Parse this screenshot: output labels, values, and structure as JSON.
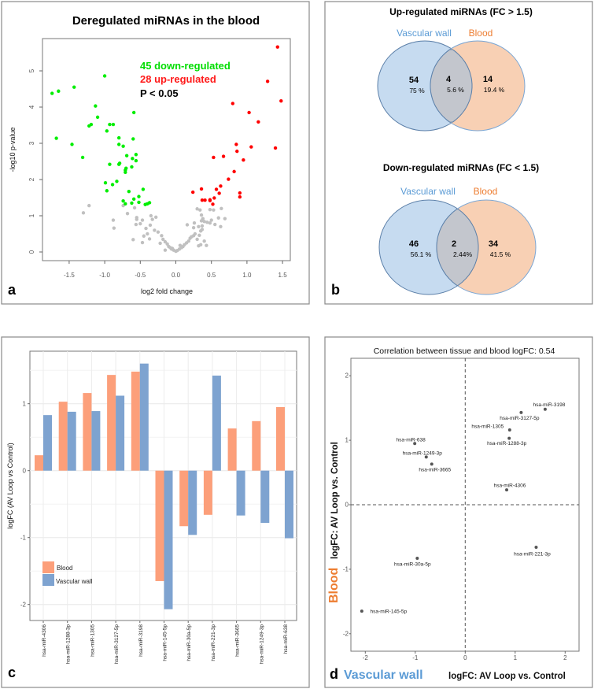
{
  "panel_labels": {
    "a": "a",
    "b": "b",
    "c": "c",
    "d": "d"
  },
  "chart_data": [
    {
      "type": "scatter",
      "panel": "a",
      "title": "Deregulated miRNAs in the blood",
      "xlabel": "log2 fold change",
      "ylabel": "-log10 p-value",
      "xlim": [
        -1.8,
        1.6
      ],
      "ylim": [
        -0.2,
        5.8
      ],
      "xticks": [
        "-1.5",
        "-1.0",
        "-0.5",
        "0.0",
        "0.5",
        "1.0",
        "1.5"
      ],
      "yticks": [
        "0",
        "1",
        "2",
        "3",
        "4",
        "5"
      ],
      "annotations": [
        {
          "text": "45 down-regulated",
          "color": "#00dd00"
        },
        {
          "text": "28 up-regulated",
          "color": "#ff1a1a"
        },
        {
          "text": "P < 0.05",
          "color": "#000000"
        }
      ],
      "series": [
        {
          "color": "#00ee00",
          "points": [
            [
              -1.74,
              4.38
            ],
            [
              -1.65,
              4.44
            ],
            [
              -1.43,
              4.55
            ],
            [
              -1.0,
              4.86
            ],
            [
              -1.13,
              4.03
            ],
            [
              -1.1,
              3.72
            ],
            [
              -1.22,
              3.48
            ],
            [
              -1.19,
              3.52
            ],
            [
              -0.93,
              3.52
            ],
            [
              -0.88,
              3.52
            ],
            [
              -0.97,
              3.34
            ],
            [
              -1.68,
              3.14
            ],
            [
              -1.46,
              2.97
            ],
            [
              -1.31,
              2.61
            ],
            [
              -0.8,
              3.15
            ],
            [
              -0.8,
              2.97
            ],
            [
              -0.74,
              2.92
            ],
            [
              -0.59,
              3.85
            ],
            [
              -0.6,
              3.12
            ],
            [
              -0.69,
              2.66
            ],
            [
              -0.56,
              2.69
            ],
            [
              -0.61,
              2.58
            ],
            [
              -0.56,
              2.52
            ],
            [
              -0.93,
              2.42
            ],
            [
              -0.8,
              2.42
            ],
            [
              -0.79,
              2.45
            ],
            [
              -0.7,
              2.31
            ],
            [
              -0.71,
              2.26
            ],
            [
              -0.71,
              2.2
            ],
            [
              -0.62,
              2.35
            ],
            [
              -0.99,
              1.91
            ],
            [
              -0.83,
              1.95
            ],
            [
              -0.89,
              1.86
            ],
            [
              -0.97,
              1.69
            ],
            [
              -0.66,
              1.67
            ],
            [
              -0.46,
              1.73
            ],
            [
              -0.74,
              1.41
            ],
            [
              -0.59,
              1.46
            ],
            [
              -0.52,
              1.53
            ],
            [
              -0.71,
              1.33
            ],
            [
              -0.62,
              1.35
            ],
            [
              -0.52,
              1.37
            ],
            [
              -0.43,
              1.31
            ],
            [
              -0.4,
              1.33
            ],
            [
              -0.37,
              1.36
            ]
          ]
        },
        {
          "color": "#ff0000",
          "points": [
            [
              1.43,
              5.66
            ],
            [
              1.29,
              4.71
            ],
            [
              1.48,
              4.17
            ],
            [
              0.8,
              4.1
            ],
            [
              1.03,
              3.85
            ],
            [
              1.16,
              3.59
            ],
            [
              1.06,
              2.9
            ],
            [
              1.4,
              2.87
            ],
            [
              0.85,
              2.97
            ],
            [
              0.86,
              2.78
            ],
            [
              0.95,
              2.54
            ],
            [
              0.67,
              2.64
            ],
            [
              0.53,
              2.61
            ],
            [
              0.82,
              2.22
            ],
            [
              0.74,
              2.01
            ],
            [
              0.63,
              1.82
            ],
            [
              0.57,
              1.73
            ],
            [
              0.61,
              1.62
            ],
            [
              0.9,
              1.63
            ],
            [
              0.9,
              1.52
            ],
            [
              0.36,
              1.74
            ],
            [
              0.24,
              1.65
            ],
            [
              0.37,
              1.43
            ],
            [
              0.41,
              1.43
            ],
            [
              0.48,
              1.42
            ],
            [
              0.48,
              1.44
            ],
            [
              0.54,
              1.49
            ],
            [
              0.52,
              1.32
            ]
          ]
        },
        {
          "color": "#c0c0c0",
          "points": [
            [
              -1.3,
              1.08
            ],
            [
              -1.22,
              1.28
            ],
            [
              -0.88,
              0.88
            ],
            [
              -0.87,
              0.66
            ],
            [
              -0.74,
              1.28
            ],
            [
              -0.58,
              1.22
            ],
            [
              -0.68,
              1.06
            ],
            [
              -0.55,
              0.95
            ],
            [
              -0.55,
              0.9
            ],
            [
              -0.56,
              0.76
            ],
            [
              -0.5,
              0.78
            ],
            [
              -0.47,
              0.88
            ],
            [
              -0.42,
              0.65
            ],
            [
              -0.35,
              1.0
            ],
            [
              -0.33,
              0.9
            ],
            [
              -0.36,
              0.74
            ],
            [
              -0.28,
              0.96
            ],
            [
              -0.3,
              0.6
            ],
            [
              -0.4,
              0.5
            ],
            [
              -0.45,
              0.44
            ],
            [
              -0.37,
              0.36
            ],
            [
              -0.6,
              0.34
            ],
            [
              -0.47,
              0.26
            ],
            [
              -0.25,
              0.55
            ],
            [
              -0.2,
              0.45
            ],
            [
              -0.18,
              0.35
            ],
            [
              -0.15,
              0.28
            ],
            [
              -0.22,
              0.24
            ],
            [
              -0.12,
              0.22
            ],
            [
              -0.1,
              0.15
            ],
            [
              -0.08,
              0.12
            ],
            [
              -0.06,
              0.08
            ],
            [
              -0.03,
              0.05
            ],
            [
              0.0,
              0.02
            ],
            [
              0.02,
              0.04
            ],
            [
              0.05,
              0.08
            ],
            [
              0.08,
              0.12
            ],
            [
              0.1,
              0.15
            ],
            [
              0.12,
              0.2
            ],
            [
              0.15,
              0.25
            ],
            [
              0.18,
              0.3
            ],
            [
              0.2,
              0.38
            ],
            [
              0.22,
              0.42
            ],
            [
              0.25,
              0.45
            ],
            [
              0.27,
              0.5
            ],
            [
              0.3,
              0.35
            ],
            [
              0.33,
              0.46
            ],
            [
              0.35,
              0.58
            ],
            [
              0.32,
              0.7
            ],
            [
              0.25,
              0.67
            ],
            [
              0.16,
              0.75
            ],
            [
              0.26,
              0.8
            ],
            [
              0.37,
              0.72
            ],
            [
              0.37,
              0.62
            ],
            [
              0.36,
              0.86
            ],
            [
              0.38,
              0.92
            ],
            [
              0.36,
              1.02
            ],
            [
              0.3,
              1.19
            ],
            [
              0.34,
              1.16
            ],
            [
              0.4,
              0.84
            ],
            [
              0.44,
              0.82
            ],
            [
              0.5,
              0.88
            ],
            [
              0.55,
              0.76
            ],
            [
              0.48,
              0.8
            ],
            [
              0.53,
              1.16
            ],
            [
              0.48,
              1.17
            ],
            [
              0.6,
              0.94
            ],
            [
              0.64,
              1.2
            ],
            [
              0.63,
              0.7
            ],
            [
              0.69,
              0.92
            ],
            [
              0.4,
              0.3
            ],
            [
              0.43,
              0.18
            ],
            [
              0.35,
              0.2
            ],
            [
              0.32,
              0.17
            ],
            [
              -0.15,
              0.05
            ],
            [
              -0.05,
              0.1
            ],
            [
              0.06,
              0.18
            ]
          ]
        }
      ]
    },
    {
      "type": "venn",
      "panel": "b",
      "diagrams": [
        {
          "title": "Up-regulated miRNAs (FC > 1.5)",
          "sets": [
            "Vascular wall",
            "Blood"
          ],
          "regions": [
            {
              "count": "54",
              "pct": "75 %"
            },
            {
              "count": "4",
              "pct": "5.6 %"
            },
            {
              "count": "14",
              "pct": "19.4 %"
            }
          ]
        },
        {
          "title": "Down-regulated miRNAs (FC < 1.5)",
          "sets": [
            "Vascular wall",
            "Blood"
          ],
          "regions": [
            {
              "count": "46",
              "pct": "56.1 %"
            },
            {
              "count": "2",
              "pct": "2.44%"
            },
            {
              "count": "34",
              "pct": "41.5 %"
            }
          ]
        }
      ],
      "colors": {
        "vascular_wall": "#5b9bd5",
        "blood": "#ed7d31"
      }
    },
    {
      "type": "bar",
      "panel": "c",
      "ylabel": "logFC (AV Loop vs Control)",
      "ylim": [
        -2.25,
        1.75
      ],
      "yticks": [
        "1",
        "0",
        "-1",
        "-2"
      ],
      "categories": [
        "hsa-miR-4306",
        "hsa-miR-1288-3p",
        "hsa-miR-1305",
        "hsa-miR-3127-5p",
        "hsa-miR-3198",
        "hsa-miR-145-5p",
        "hsa-miR-30a-5p",
        "hsa-miR-221-3p",
        "hsa-miR-3665",
        "hsa-miR-1249-3p",
        "hsa-miR-638"
      ],
      "series": [
        {
          "name": "Blood",
          "color": "#fc9f7a",
          "values": [
            0.23,
            1.03,
            1.16,
            1.43,
            1.48,
            -1.65,
            -0.83,
            -0.66,
            0.63,
            0.74,
            0.95
          ]
        },
        {
          "name": "Vascular wall",
          "color": "#7ea3d0",
          "values": [
            0.83,
            0.88,
            0.89,
            1.12,
            1.6,
            -2.07,
            -0.96,
            1.42,
            -0.67,
            -0.78,
            -1.01
          ]
        }
      ],
      "legend": "bottom-left"
    },
    {
      "type": "scatter",
      "panel": "d",
      "title": "Correlation between tissue and blood logFC: 0.54",
      "xlabel_prefix": "Vascular wall",
      "ylabel_prefix": "Blood",
      "axis_label": "logFC: AV Loop vs. Control",
      "xlim": [
        -2.3,
        2.3
      ],
      "ylim": [
        -2.27,
        2.27
      ],
      "xticks": [
        "-2",
        "-1",
        "0",
        "1",
        "2"
      ],
      "yticks": [
        "2",
        "1",
        "0",
        "-1",
        "-2"
      ],
      "points": [
        {
          "label": "hsa-miR-3198",
          "x": 1.6,
          "y": 1.48
        },
        {
          "label": "hsa-miR-3127-5p",
          "x": 1.12,
          "y": 1.43
        },
        {
          "label": "hsa-miR-1305",
          "x": 0.89,
          "y": 1.16
        },
        {
          "label": "hsa-miR-1288-3p",
          "x": 0.88,
          "y": 1.03
        },
        {
          "label": "hsa-miR-638",
          "x": -1.01,
          "y": 0.95
        },
        {
          "label": "hsa-miR-1249-3p",
          "x": -0.78,
          "y": 0.74
        },
        {
          "label": "hsa-miR-3665",
          "x": -0.67,
          "y": 0.63
        },
        {
          "label": "hsa-miR-4306",
          "x": 0.83,
          "y": 0.23
        },
        {
          "label": "hsa-miR-221-3p",
          "x": 1.42,
          "y": -0.66
        },
        {
          "label": "hsa-miR-30a-5p",
          "x": -0.96,
          "y": -0.83
        },
        {
          "label": "hsa-miR-145-5p",
          "x": -2.07,
          "y": -1.65
        }
      ],
      "reference_lines": {
        "x": 0,
        "y": 0,
        "style": "dashed"
      }
    }
  ]
}
